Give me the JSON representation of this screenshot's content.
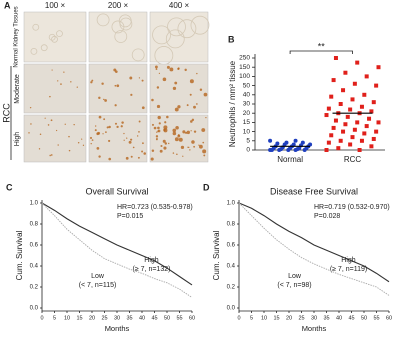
{
  "panel_labels": [
    "A",
    "B",
    "C",
    "D"
  ],
  "panel_a": {
    "magnifications": [
      "100 ×",
      "200 ×",
      "400 ×"
    ],
    "row_labels": [
      "Normal Kidney Tissues",
      "Moderate",
      "High"
    ],
    "group_label": "RCC"
  },
  "chart_data": [
    {
      "type": "dot",
      "ylabel": "Neutrophils / mm² tissue",
      "categories": [
        "Normal",
        "RCC"
      ],
      "values_by_category": [
        [
          0,
          0,
          0,
          0,
          0,
          0,
          0.5,
          0.5,
          1,
          1,
          1,
          1,
          1.5,
          2,
          2,
          2,
          2.5,
          3,
          3,
          3,
          3.5,
          4,
          4,
          5,
          5
        ],
        [
          0,
          0,
          1,
          2,
          3,
          4,
          5,
          5,
          6,
          7,
          8,
          9,
          10,
          10,
          11,
          12,
          13,
          14,
          15,
          15,
          16,
          17,
          18,
          19,
          20,
          20,
          22,
          24,
          25,
          27,
          30,
          32,
          35,
          38,
          40,
          45,
          50,
          60,
          80,
          100,
          120,
          150,
          200,
          250
        ]
      ],
      "colors": [
        "#1f3fbf",
        "#e0201b"
      ],
      "means": [
        2,
        20
      ],
      "significance": "**",
      "ylim": [
        0,
        250
      ],
      "yticks": [
        0,
        5,
        10,
        15,
        20,
        30,
        40,
        50,
        100,
        150,
        250
      ]
    },
    {
      "type": "line",
      "title": "Overall Survival",
      "xlabel": "Months",
      "ylabel": "Cum. Survival",
      "annotations": [
        "HR=0.723 (0.535-0.978)",
        "P=0.015"
      ],
      "xlim": [
        0,
        60
      ],
      "xticks": [
        0,
        5,
        10,
        15,
        20,
        25,
        30,
        35,
        40,
        45,
        50,
        55,
        60
      ],
      "ylim": [
        0,
        1
      ],
      "yticks": [
        {
          "value": 0,
          "label": "0.0"
        },
        0.2,
        0.4,
        0.6,
        0.8,
        {
          "value": 1,
          "label": "1.0"
        }
      ],
      "x": [
        0,
        5,
        10,
        15,
        20,
        25,
        30,
        35,
        40,
        45,
        50,
        55,
        60
      ],
      "series": [
        {
          "name": "High",
          "detail": "(≥ 7, n=132)",
          "color": "#333333",
          "values": [
            1,
            0.93,
            0.85,
            0.78,
            0.72,
            0.66,
            0.6,
            0.55,
            0.5,
            0.45,
            0.38,
            0.3,
            0.22
          ]
        },
        {
          "name": "Low",
          "detail": "(< 7, n=115)",
          "color": "#aaaaaa",
          "values": [
            1,
            0.88,
            0.75,
            0.65,
            0.55,
            0.47,
            0.42,
            0.37,
            0.33,
            0.28,
            0.24,
            0.18,
            0.1
          ]
        }
      ]
    },
    {
      "type": "line",
      "title": "Disease Free Survival",
      "xlabel": "Months",
      "ylabel": "Cum. Survival",
      "annotations": [
        "HR=0.719 (0.532-0.970)",
        "P=0.028"
      ],
      "xlim": [
        0,
        60
      ],
      "xticks": [
        0,
        5,
        10,
        15,
        20,
        25,
        30,
        35,
        40,
        45,
        50,
        55,
        60
      ],
      "ylim": [
        0,
        1
      ],
      "yticks": [
        {
          "value": 0,
          "label": "0.0"
        },
        0.2,
        0.4,
        0.6,
        0.8,
        {
          "value": 1,
          "label": "1.0"
        }
      ],
      "x": [
        0,
        5,
        10,
        15,
        20,
        25,
        30,
        35,
        40,
        45,
        50,
        55,
        60
      ],
      "series": [
        {
          "name": "High",
          "detail": "(≥ 7, n=119)",
          "color": "#333333",
          "values": [
            1,
            0.95,
            0.88,
            0.8,
            0.73,
            0.67,
            0.6,
            0.55,
            0.5,
            0.45,
            0.4,
            0.33,
            0.25
          ]
        },
        {
          "name": "Low",
          "detail": "(< 7, n=98)",
          "color": "#aaaaaa",
          "values": [
            1,
            0.88,
            0.76,
            0.65,
            0.56,
            0.48,
            0.42,
            0.37,
            0.32,
            0.28,
            0.24,
            0.2,
            0.12
          ]
        }
      ]
    }
  ]
}
